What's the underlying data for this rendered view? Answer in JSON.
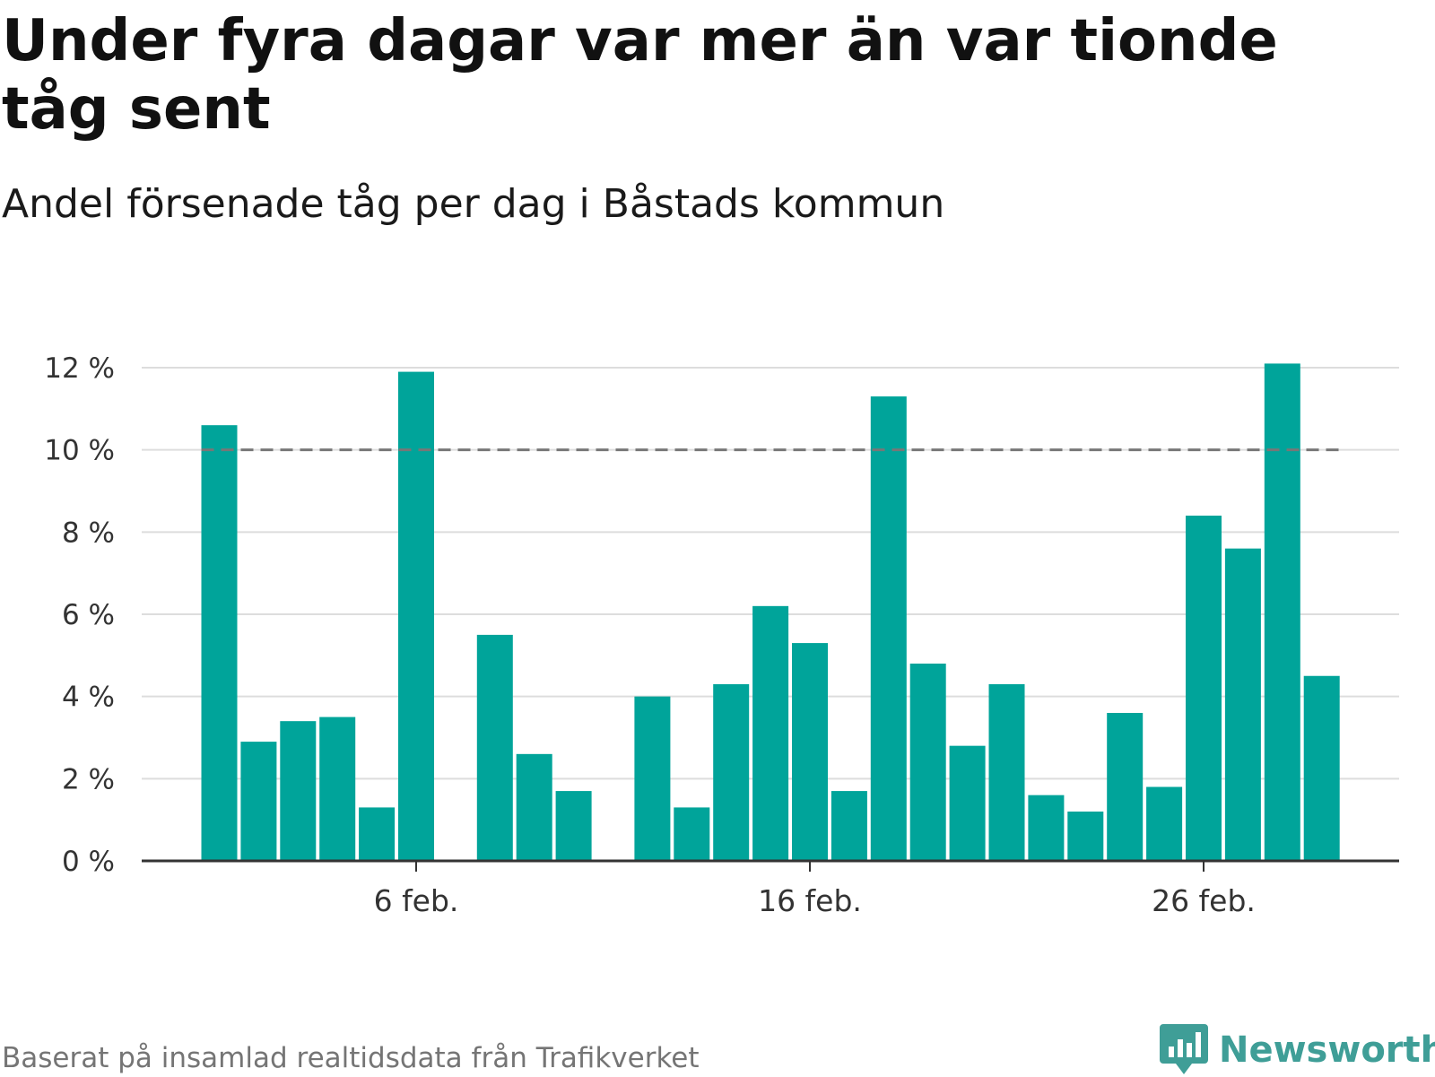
{
  "title": "Under fyra dagar var mer än var tionde tåg sent",
  "subtitle": "Andel försenade tåg per dag i Båstads kommun",
  "footer": "Baserat på insamlad realtidsdata från Trafikverket",
  "brand": {
    "name": "Newsworthy",
    "logo_icon": "bar-chart-speech-bubble-icon"
  },
  "colors": {
    "bar": "#00a49a",
    "reference": "#777777",
    "grid": "#dddddd",
    "axis": "#333333",
    "brand": "#3f9e97"
  },
  "chart_data": {
    "type": "bar",
    "title": "Under fyra dagar var mer än var tionde tåg sent",
    "subtitle": "Andel försenade tåg per dag i Båstads kommun",
    "xlabel": "",
    "ylabel": "",
    "ylim": [
      0,
      12
    ],
    "yticks": [
      0,
      2,
      4,
      6,
      8,
      10,
      12
    ],
    "ytick_suffix": " %",
    "xticks": [
      {
        "day": 6,
        "label": "6 feb."
      },
      {
        "day": 16,
        "label": "16 feb."
      },
      {
        "day": 26,
        "label": "26 feb."
      }
    ],
    "grid": true,
    "reference_line": {
      "value": 10,
      "style": "dashed"
    },
    "series": [
      {
        "days": [
          1,
          2,
          3,
          4,
          5,
          6,
          7,
          8,
          9,
          10,
          11,
          12,
          13,
          14,
          15,
          16,
          17,
          18,
          19,
          20,
          21,
          22,
          23,
          24,
          25,
          26,
          27,
          28,
          29,
          30
        ],
        "values": [
          10.6,
          2.9,
          3.4,
          3.5,
          1.3,
          11.9,
          null,
          5.5,
          2.6,
          1.7,
          null,
          4.0,
          1.3,
          4.3,
          6.2,
          5.3,
          1.7,
          11.3,
          4.8,
          2.8,
          4.3,
          1.6,
          1.2,
          3.6,
          1.8,
          8.4,
          7.6,
          12.1,
          4.5,
          null
        ]
      }
    ]
  }
}
